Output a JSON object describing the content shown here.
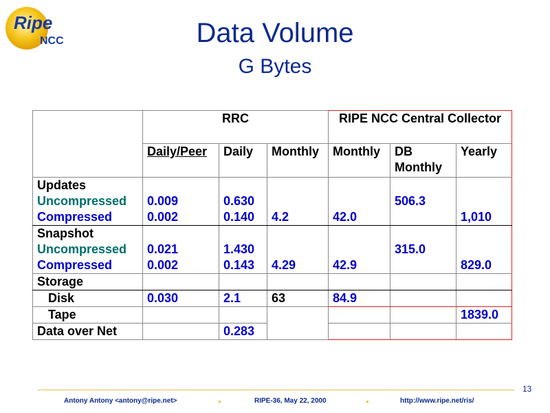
{
  "logo": {
    "ripe": "Ripe",
    "ncc": "NCC"
  },
  "title": "Data Volume",
  "subtitle": "G Bytes",
  "table": {
    "group_rrc": "RRC",
    "group_central": "RIPE NCC Central Collector",
    "columns": [
      "Daily/Peer",
      "Daily",
      "Monthly",
      "Monthly",
      "DB Monthly",
      "Yearly"
    ],
    "updates_label": "Updates",
    "uncompressed_label": "Uncompressed",
    "compressed_label": "Compressed",
    "snapshot_label": "Snapshot",
    "storage_label": "Storage",
    "disk_label": "Disk",
    "tape_label": "Tape",
    "net_label": "Data over Net",
    "updates": {
      "uncompressed_daily_peer": "0.009",
      "compressed_daily_peer": "0.002",
      "uncompressed_daily": "0.630",
      "compressed_daily": "0.140",
      "monthly": "4.2",
      "central_monthly": "42.0",
      "db_monthly": "506.3",
      "yearly": "1,010"
    },
    "snapshot": {
      "uncompressed_daily_peer": "0.021",
      "compressed_daily_peer": "0.002",
      "uncompressed_daily": "1.430",
      "compressed_daily": "0.143",
      "monthly": "4.29",
      "central_monthly": "42.9",
      "db_monthly": "315.0",
      "yearly": "829.0"
    },
    "disk": {
      "daily_peer": "0.030",
      "daily": "2.1",
      "monthly": "63",
      "central_monthly": "84.9"
    },
    "tape": {
      "yearly": "1839.0"
    },
    "net": {
      "daily": "0.283"
    }
  },
  "footer": {
    "author": "Antony Antony <antony@ripe.net>",
    "event": "RIPE-36, May 22, 2000",
    "url": "http://www.ripe.net/ris/",
    "page": "13"
  }
}
